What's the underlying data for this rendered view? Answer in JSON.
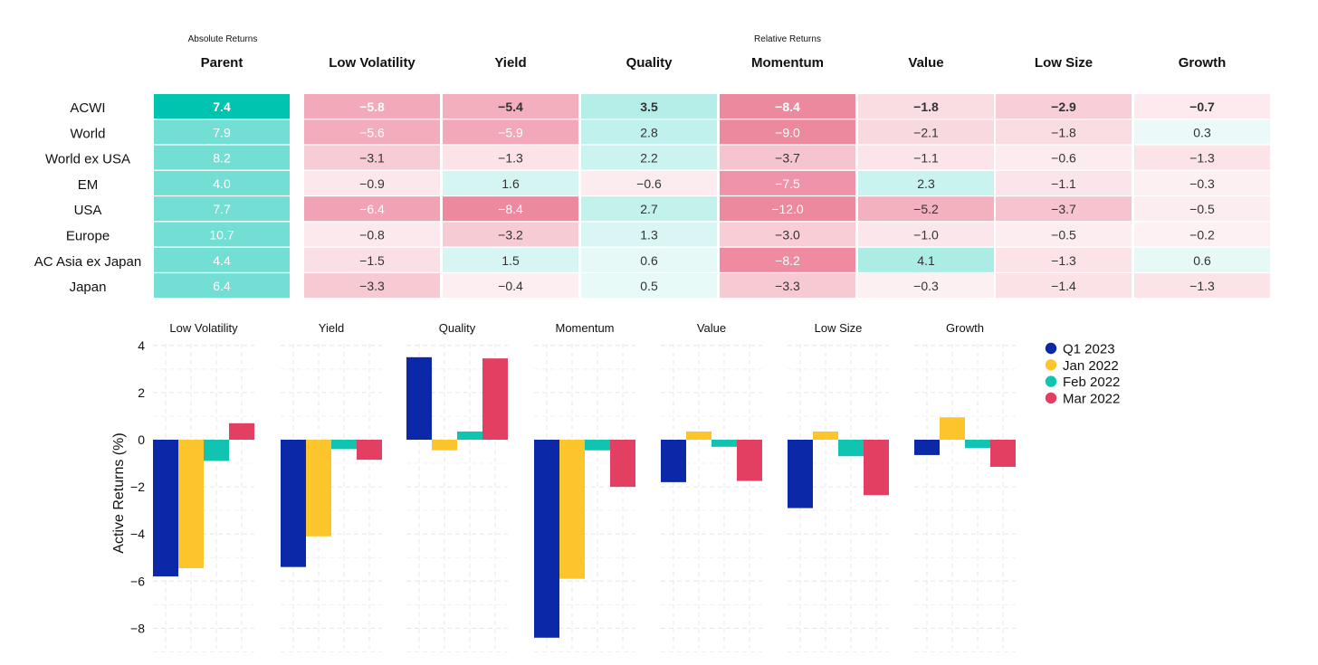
{
  "chart_data": [
    {
      "type": "heatmap",
      "group_labels": {
        "absolute": "Absolute Returns",
        "relative": "Relative Returns"
      },
      "columns": [
        "Parent",
        "Low Volatility",
        "Yield",
        "Quality",
        "Momentum",
        "Value",
        "Low Size",
        "Growth"
      ],
      "rows": [
        {
          "label": "ACWI",
          "values": [
            7.4,
            -5.8,
            -5.4,
            3.5,
            -8.4,
            -1.8,
            -2.9,
            -0.7
          ]
        },
        {
          "label": "World",
          "values": [
            7.9,
            -5.6,
            -5.9,
            2.8,
            -9.0,
            -2.1,
            -1.8,
            0.3
          ]
        },
        {
          "label": "World ex USA",
          "values": [
            8.2,
            -3.1,
            -1.3,
            2.2,
            -3.7,
            -1.1,
            -0.6,
            -1.3
          ]
        },
        {
          "label": "EM",
          "values": [
            4.0,
            -0.9,
            1.6,
            -0.6,
            -7.5,
            2.3,
            -1.1,
            -0.3
          ]
        },
        {
          "label": "USA",
          "values": [
            7.7,
            -6.4,
            -8.4,
            2.7,
            -12.0,
            -5.2,
            -3.7,
            -0.5
          ]
        },
        {
          "label": "Europe",
          "values": [
            10.7,
            -0.8,
            -3.2,
            1.3,
            -3.0,
            -1.0,
            -0.5,
            -0.2
          ]
        },
        {
          "label": "AC Asia ex Japan",
          "values": [
            4.4,
            -1.5,
            1.5,
            0.6,
            -8.2,
            4.1,
            -1.3,
            0.6
          ]
        },
        {
          "label": "Japan",
          "values": [
            6.4,
            -3.3,
            -0.4,
            0.5,
            -3.3,
            -0.3,
            -1.4,
            -1.3
          ]
        }
      ],
      "colors": {
        "positive": "#00c4b0",
        "negative": "#e23d61"
      }
    },
    {
      "type": "bar",
      "ylabel": "Active Returns (%)",
      "ylim": [
        -8.8,
        4.2
      ],
      "yticks": [
        4,
        2,
        0,
        -2,
        -4,
        -6,
        -8
      ],
      "ytick_labels": [
        "4",
        "2",
        "0",
        "−2",
        "−4",
        "−6",
        "−8"
      ],
      "grid": true,
      "legend_position": "top-right",
      "facets": [
        "Low Volatility",
        "Yield",
        "Quality",
        "Momentum",
        "Value",
        "Low Size",
        "Growth"
      ],
      "series": [
        {
          "name": "Q1 2023",
          "color": "#0a28a8",
          "values": [
            -5.8,
            -5.4,
            3.5,
            -8.4,
            -1.8,
            -2.9,
            -0.65
          ]
        },
        {
          "name": "Jan 2022",
          "color": "#fdc52c",
          "values": [
            -5.45,
            -4.1,
            -0.45,
            -5.9,
            0.35,
            0.35,
            0.95
          ]
        },
        {
          "name": "Feb 2022",
          "color": "#11c4b1",
          "values": [
            -0.9,
            -0.4,
            0.35,
            -0.45,
            -0.3,
            -0.7,
            -0.35
          ]
        },
        {
          "name": "Mar 2022",
          "color": "#e33f62",
          "values": [
            0.7,
            -0.85,
            3.45,
            -2.0,
            -1.75,
            -2.35,
            -1.15
          ]
        }
      ]
    }
  ]
}
